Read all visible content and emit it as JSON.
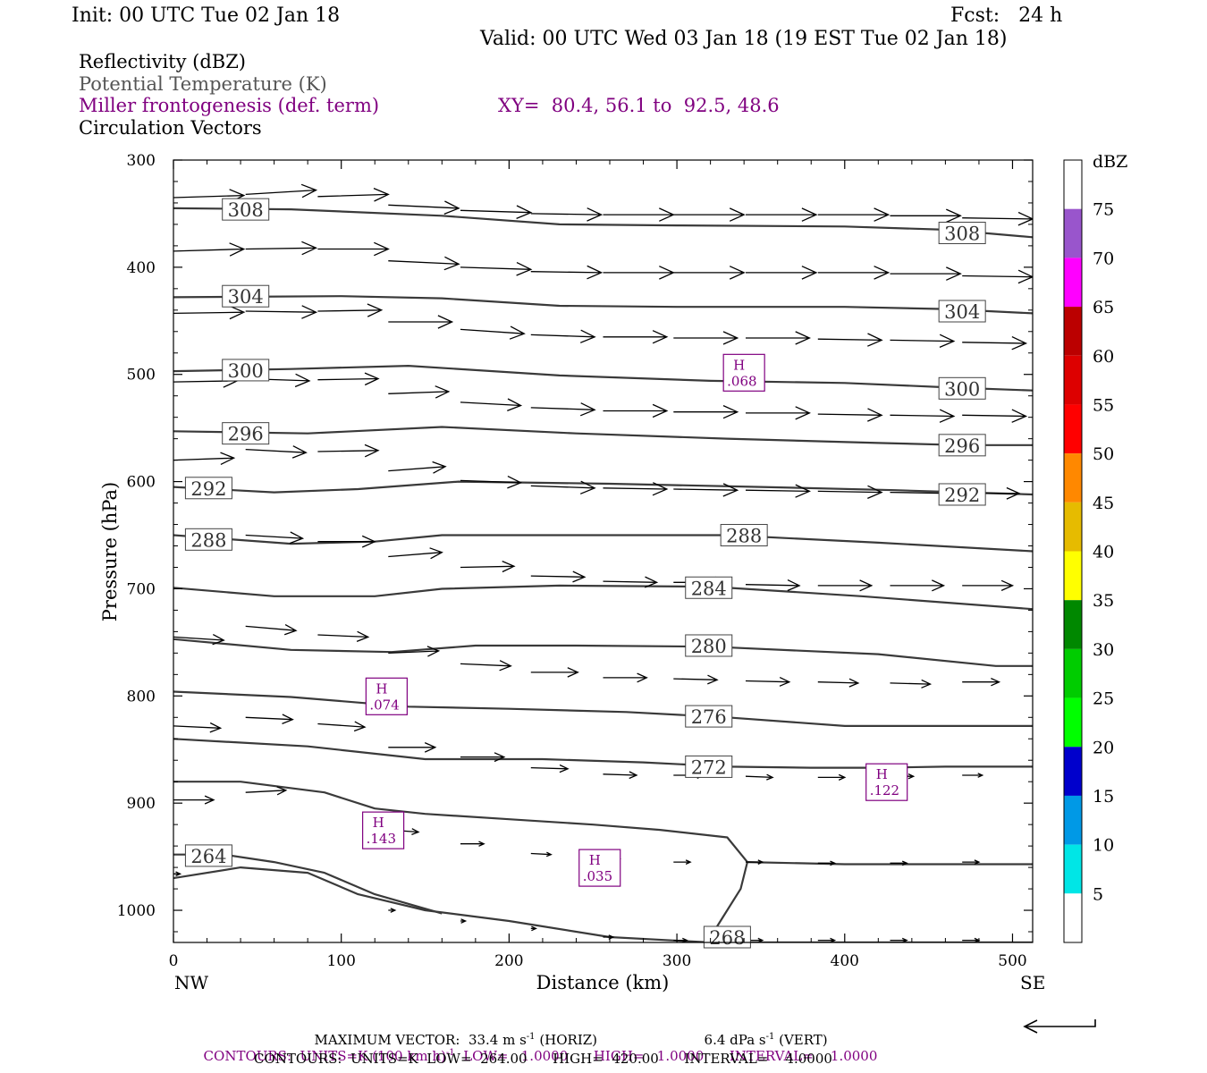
{
  "header": {
    "init": "Init: 00 UTC Tue 02 Jan 18",
    "fcst": "Fcst:   24 h",
    "valid": "Valid: 00 UTC Wed 03 Jan 18 (19 EST Tue 02 Jan 18)",
    "titles": {
      "reflectivity": "Reflectivity (dBZ)",
      "theta": "Potential Temperature (K)",
      "miller": "Miller frontogenesis (def. term)",
      "xy": "XY=  80.4, 56.1 to  92.5, 48.6",
      "vectors": "Circulation Vectors"
    }
  },
  "colors": {
    "theta": "#3a3a3a",
    "frontogenesis": "#800080",
    "vector": "#000000"
  },
  "chart_data": {
    "type": "line",
    "xlabel": "Distance (km)",
    "ylabel": "Pressure (hPa)",
    "xlim": [
      0,
      512
    ],
    "ylim": [
      300,
      1030
    ],
    "y_reversed": true,
    "x_ticks": [
      0,
      100,
      200,
      300,
      400,
      500
    ],
    "y_ticks": [
      300,
      400,
      500,
      600,
      700,
      800,
      900,
      1000
    ],
    "x_end_labels": {
      "left": "NW",
      "right": "SE"
    },
    "grid": false,
    "isentropes": [
      {
        "name": "308",
        "x": [
          0,
          70,
          160,
          230,
          300,
          400,
          460,
          512
        ],
        "y": [
          345,
          346,
          352,
          360,
          361,
          362,
          365,
          372
        ]
      },
      {
        "name": "304",
        "x": [
          0,
          100,
          160,
          230,
          300,
          400,
          460,
          512
        ],
        "y": [
          428,
          427,
          429,
          436,
          437,
          437,
          439,
          443
        ]
      },
      {
        "name": "300",
        "x": [
          0,
          70,
          140,
          230,
          320,
          400,
          460,
          512
        ],
        "y": [
          497,
          495,
          492,
          501,
          506,
          508,
          512,
          515
        ]
      },
      {
        "name": "296",
        "x": [
          0,
          80,
          160,
          240,
          330,
          420,
          470,
          512
        ],
        "y": [
          553,
          555,
          549,
          555,
          560,
          564,
          566,
          566
        ]
      },
      {
        "name": "292",
        "x": [
          0,
          60,
          110,
          170,
          260,
          350,
          430,
          512
        ],
        "y": [
          605,
          610,
          607,
          600,
          602,
          605,
          608,
          612
        ]
      },
      {
        "name": "288",
        "x": [
          0,
          70,
          120,
          160,
          220,
          330,
          420,
          512
        ],
        "y": [
          650,
          658,
          656,
          650,
          650,
          650,
          657,
          665
        ]
      },
      {
        "name": "284",
        "x": [
          0,
          60,
          120,
          160,
          230,
          320,
          410,
          512
        ],
        "y": [
          699,
          707,
          707,
          700,
          697,
          698,
          707,
          719
        ]
      },
      {
        "name": "280",
        "x": [
          0,
          70,
          130,
          180,
          240,
          320,
          420,
          490,
          512
        ],
        "y": [
          747,
          757,
          759,
          753,
          753,
          754,
          761,
          772,
          772
        ]
      },
      {
        "name": "276",
        "x": [
          0,
          70,
          140,
          200,
          270,
          330,
          400,
          512
        ],
        "y": [
          796,
          801,
          810,
          812,
          815,
          820,
          828,
          828
        ]
      },
      {
        "name": "272",
        "x": [
          0,
          80,
          150,
          220,
          280,
          330,
          380,
          420,
          460,
          512
        ],
        "y": [
          840,
          847,
          859,
          859,
          862,
          866,
          867,
          867,
          866,
          866
        ]
      },
      {
        "name": "268",
        "x": [
          0,
          40,
          90,
          120,
          150,
          200,
          250,
          290,
          330,
          342,
          338,
          328,
          320
        ],
        "y": [
          880,
          880,
          890,
          905,
          910,
          915,
          920,
          925,
          932,
          955,
          980,
          1005,
          1025
        ]
      },
      {
        "name": "268",
        "x": [
          342,
          400,
          512
        ],
        "y": [
          955,
          957,
          957
        ]
      },
      {
        "name": "264",
        "x": [
          0,
          30,
          60,
          90,
          120,
          160
        ],
        "y": [
          948,
          948,
          955,
          965,
          985,
          1003
        ]
      },
      {
        "name": "264",
        "x": [
          0,
          40,
          80,
          110,
          150,
          200,
          260,
          320,
          420,
          512
        ],
        "y": [
          970,
          960,
          965,
          985,
          1000,
          1010,
          1025,
          1030,
          1030,
          1030
        ]
      }
    ],
    "contour_labels": [
      {
        "text": "308",
        "x": 43,
        "y": 346
      },
      {
        "text": "308",
        "x": 470,
        "y": 368
      },
      {
        "text": "304",
        "x": 43,
        "y": 427
      },
      {
        "text": "304",
        "x": 470,
        "y": 441
      },
      {
        "text": "300",
        "x": 43,
        "y": 496
      },
      {
        "text": "300",
        "x": 470,
        "y": 513
      },
      {
        "text": "296",
        "x": 43,
        "y": 555
      },
      {
        "text": "296",
        "x": 470,
        "y": 566
      },
      {
        "text": "292",
        "x": 21,
        "y": 606
      },
      {
        "text": "292",
        "x": 470,
        "y": 612
      },
      {
        "text": "288",
        "x": 21,
        "y": 654
      },
      {
        "text": "288",
        "x": 340,
        "y": 650
      },
      {
        "text": "284",
        "x": 319,
        "y": 699
      },
      {
        "text": "280",
        "x": 319,
        "y": 753
      },
      {
        "text": "276",
        "x": 319,
        "y": 819
      },
      {
        "text": "272",
        "x": 319,
        "y": 866
      },
      {
        "text": "268",
        "x": 330,
        "y": 1025
      },
      {
        "text": "264",
        "x": 21,
        "y": 949
      }
    ],
    "frontogenesis_maxima": [
      {
        "label": "H",
        "value": ".068",
        "x": 340,
        "y": 498
      },
      {
        "label": "H",
        "value": ".074",
        "x": 127,
        "y": 800
      },
      {
        "label": "H",
        "value": ".122",
        "x": 425,
        "y": 880
      },
      {
        "label": "H",
        "value": ".143",
        "x": 125,
        "y": 925
      },
      {
        "label": "H",
        "value": ".035",
        "x": 254,
        "y": 960
      }
    ],
    "vectors": [
      {
        "x": 0,
        "y": 335,
        "u": 42,
        "w": -2
      },
      {
        "x": 43,
        "y": 332,
        "u": 42,
        "w": -4
      },
      {
        "x": 86,
        "y": 334,
        "u": 42,
        "w": -2
      },
      {
        "x": 128,
        "y": 342,
        "u": 42,
        "w": 3
      },
      {
        "x": 171,
        "y": 347,
        "u": 42,
        "w": 2
      },
      {
        "x": 213,
        "y": 350,
        "u": 42,
        "w": 1
      },
      {
        "x": 256,
        "y": 351,
        "u": 42,
        "w": 0
      },
      {
        "x": 298,
        "y": 351,
        "u": 42,
        "w": 0
      },
      {
        "x": 341,
        "y": 351,
        "u": 42,
        "w": 0
      },
      {
        "x": 384,
        "y": 351,
        "u": 42,
        "w": 0
      },
      {
        "x": 427,
        "y": 352,
        "u": 42,
        "w": 0
      },
      {
        "x": 470,
        "y": 354,
        "u": 42,
        "w": 1
      },
      {
        "x": 0,
        "y": 385,
        "u": 42,
        "w": -2
      },
      {
        "x": 43,
        "y": 383,
        "u": 42,
        "w": -1
      },
      {
        "x": 86,
        "y": 383,
        "u": 42,
        "w": 0
      },
      {
        "x": 128,
        "y": 394,
        "u": 42,
        "w": 3
      },
      {
        "x": 171,
        "y": 400,
        "u": 42,
        "w": 2
      },
      {
        "x": 213,
        "y": 404,
        "u": 42,
        "w": 1
      },
      {
        "x": 256,
        "y": 405,
        "u": 42,
        "w": 0
      },
      {
        "x": 298,
        "y": 405,
        "u": 42,
        "w": 0
      },
      {
        "x": 341,
        "y": 405,
        "u": 42,
        "w": 0
      },
      {
        "x": 384,
        "y": 405,
        "u": 42,
        "w": 0
      },
      {
        "x": 427,
        "y": 406,
        "u": 42,
        "w": 0
      },
      {
        "x": 470,
        "y": 408,
        "u": 42,
        "w": 1
      },
      {
        "x": 0,
        "y": 443,
        "u": 42,
        "w": -1
      },
      {
        "x": 43,
        "y": 441,
        "u": 42,
        "w": 1
      },
      {
        "x": 86,
        "y": 441,
        "u": 38,
        "w": -1
      },
      {
        "x": 128,
        "y": 451,
        "u": 38,
        "w": 0
      },
      {
        "x": 171,
        "y": 458,
        "u": 38,
        "w": 4
      },
      {
        "x": 213,
        "y": 463,
        "u": 38,
        "w": 2
      },
      {
        "x": 256,
        "y": 465,
        "u": 38,
        "w": 0
      },
      {
        "x": 298,
        "y": 466,
        "u": 38,
        "w": 0
      },
      {
        "x": 341,
        "y": 466,
        "u": 38,
        "w": 0
      },
      {
        "x": 384,
        "y": 467,
        "u": 38,
        "w": 1
      },
      {
        "x": 427,
        "y": 468,
        "u": 38,
        "w": 1
      },
      {
        "x": 470,
        "y": 470,
        "u": 38,
        "w": 1
      },
      {
        "x": 0,
        "y": 507,
        "u": 38,
        "w": -1
      },
      {
        "x": 43,
        "y": 504,
        "u": 38,
        "w": 2
      },
      {
        "x": 86,
        "y": 505,
        "u": 36,
        "w": -1
      },
      {
        "x": 128,
        "y": 518,
        "u": 36,
        "w": -2
      },
      {
        "x": 171,
        "y": 526,
        "u": 36,
        "w": 3
      },
      {
        "x": 213,
        "y": 531,
        "u": 38,
        "w": 2
      },
      {
        "x": 256,
        "y": 534,
        "u": 38,
        "w": 0
      },
      {
        "x": 298,
        "y": 535,
        "u": 38,
        "w": 0
      },
      {
        "x": 341,
        "y": 536,
        "u": 38,
        "w": 0
      },
      {
        "x": 384,
        "y": 537,
        "u": 38,
        "w": 1
      },
      {
        "x": 427,
        "y": 538,
        "u": 38,
        "w": 1
      },
      {
        "x": 470,
        "y": 538,
        "u": 38,
        "w": 1
      },
      {
        "x": 0,
        "y": 580,
        "u": 36,
        "w": -2
      },
      {
        "x": 43,
        "y": 570,
        "u": 36,
        "w": 3
      },
      {
        "x": 86,
        "y": 572,
        "u": 36,
        "w": -1
      },
      {
        "x": 128,
        "y": 590,
        "u": 34,
        "w": -4
      },
      {
        "x": 171,
        "y": 599,
        "u": 36,
        "w": 2
      },
      {
        "x": 213,
        "y": 604,
        "u": 38,
        "w": 2
      },
      {
        "x": 256,
        "y": 606,
        "u": 38,
        "w": 1
      },
      {
        "x": 298,
        "y": 607,
        "u": 38,
        "w": 1
      },
      {
        "x": 341,
        "y": 608,
        "u": 38,
        "w": 1
      },
      {
        "x": 384,
        "y": 609,
        "u": 38,
        "w": 1
      },
      {
        "x": 427,
        "y": 610,
        "u": 38,
        "w": 1
      },
      {
        "x": 470,
        "y": 611,
        "u": 34,
        "w": 0
      },
      {
        "x": 43,
        "y": 650,
        "u": 34,
        "w": 3
      },
      {
        "x": 86,
        "y": 656,
        "u": 34,
        "w": 0
      },
      {
        "x": 128,
        "y": 670,
        "u": 32,
        "w": -4
      },
      {
        "x": 171,
        "y": 680,
        "u": 32,
        "w": -1
      },
      {
        "x": 213,
        "y": 688,
        "u": 32,
        "w": 1
      },
      {
        "x": 256,
        "y": 693,
        "u": 32,
        "w": 1
      },
      {
        "x": 298,
        "y": 694,
        "u": 32,
        "w": 0
      },
      {
        "x": 341,
        "y": 696,
        "u": 32,
        "w": 1
      },
      {
        "x": 384,
        "y": 697,
        "u": 32,
        "w": 0
      },
      {
        "x": 427,
        "y": 697,
        "u": 32,
        "w": 0
      },
      {
        "x": 470,
        "y": 697,
        "u": 30,
        "w": 0
      },
      {
        "x": 0,
        "y": 745,
        "u": 30,
        "w": 3
      },
      {
        "x": 43,
        "y": 735,
        "u": 30,
        "w": 4
      },
      {
        "x": 86,
        "y": 743,
        "u": 30,
        "w": 2
      },
      {
        "x": 128,
        "y": 760,
        "u": 30,
        "w": -2
      },
      {
        "x": 171,
        "y": 770,
        "u": 30,
        "w": 2
      },
      {
        "x": 213,
        "y": 778,
        "u": 28,
        "w": 0
      },
      {
        "x": 256,
        "y": 783,
        "u": 26,
        "w": 0
      },
      {
        "x": 298,
        "y": 784,
        "u": 26,
        "w": 1
      },
      {
        "x": 341,
        "y": 786,
        "u": 26,
        "w": 1
      },
      {
        "x": 384,
        "y": 787,
        "u": 24,
        "w": 1
      },
      {
        "x": 427,
        "y": 788,
        "u": 24,
        "w": 1
      },
      {
        "x": 470,
        "y": 787,
        "u": 22,
        "w": 0
      },
      {
        "x": 0,
        "y": 828,
        "u": 28,
        "w": 2
      },
      {
        "x": 43,
        "y": 820,
        "u": 28,
        "w": 2
      },
      {
        "x": 86,
        "y": 826,
        "u": 28,
        "w": 3
      },
      {
        "x": 128,
        "y": 848,
        "u": 28,
        "w": 0
      },
      {
        "x": 171,
        "y": 857,
        "u": 26,
        "w": 0
      },
      {
        "x": 213,
        "y": 867,
        "u": 22,
        "w": 1
      },
      {
        "x": 256,
        "y": 873,
        "u": 20,
        "w": 1
      },
      {
        "x": 298,
        "y": 874,
        "u": 18,
        "w": 0
      },
      {
        "x": 341,
        "y": 875,
        "u": 16,
        "w": 1
      },
      {
        "x": 384,
        "y": 876,
        "u": 16,
        "w": 0
      },
      {
        "x": 427,
        "y": 875,
        "u": 14,
        "w": 0
      },
      {
        "x": 470,
        "y": 874,
        "u": 12,
        "w": 0
      },
      {
        "x": 0,
        "y": 897,
        "u": 24,
        "w": 0
      },
      {
        "x": 43,
        "y": 890,
        "u": 24,
        "w": -2
      },
      {
        "x": 128,
        "y": 925,
        "u": 18,
        "w": 2
      },
      {
        "x": 171,
        "y": 938,
        "u": 14,
        "w": 0
      },
      {
        "x": 213,
        "y": 947,
        "u": 12,
        "w": 1
      },
      {
        "x": 256,
        "y": 951,
        "u": 10,
        "w": 1
      },
      {
        "x": 298,
        "y": 955,
        "u": 10,
        "w": 0
      },
      {
        "x": 341,
        "y": 955,
        "u": 10,
        "w": 0
      },
      {
        "x": 384,
        "y": 956,
        "u": 10,
        "w": 0
      },
      {
        "x": 427,
        "y": 956,
        "u": 10,
        "w": 0
      },
      {
        "x": 470,
        "y": 955,
        "u": 10,
        "w": 0
      },
      {
        "x": 0,
        "y": 966,
        "u": 4,
        "w": 0
      },
      {
        "x": 128,
        "y": 1000,
        "u": 4,
        "w": 0
      },
      {
        "x": 171,
        "y": 1010,
        "u": 3,
        "w": 0
      },
      {
        "x": 213,
        "y": 1017,
        "u": 3,
        "w": 0
      },
      {
        "x": 256,
        "y": 1025,
        "u": 6,
        "w": 0
      },
      {
        "x": 298,
        "y": 1028,
        "u": 8,
        "w": 0
      },
      {
        "x": 341,
        "y": 1028,
        "u": 10,
        "w": 0
      },
      {
        "x": 384,
        "y": 1028,
        "u": 10,
        "w": 0
      },
      {
        "x": 427,
        "y": 1028,
        "u": 10,
        "w": 0
      },
      {
        "x": 470,
        "y": 1028,
        "u": 10,
        "w": 0
      }
    ],
    "colorbar": {
      "unit": "dBZ",
      "labels": [
        "5",
        "10",
        "15",
        "20",
        "25",
        "30",
        "35",
        "40",
        "45",
        "50",
        "55",
        "60",
        "65",
        "70",
        "75"
      ],
      "colors": [
        "#ffffff",
        "#00e6e6",
        "#0099e6",
        "#0000cc",
        "#00ff00",
        "#00cc00",
        "#008800",
        "#ffff00",
        "#e6bb00",
        "#ff8800",
        "#ff0000",
        "#dd0000",
        "#bb0000",
        "#ff00ff",
        "#9955cc",
        "#ffffff"
      ]
    }
  },
  "footer": {
    "max_vector_label": "MAXIMUM VECTOR:",
    "max_vector_horiz": "33.4 m s",
    "max_vector_horiz_exp": "-1",
    "max_vector_horiz_tail": " (HORIZ)",
    "max_vector_vert": "6.4 dPa s",
    "max_vector_vert_exp": "-1",
    "max_vector_vert_tail": " (VERT)",
    "contours1_a": "CONTOURS:  UNITS=K (100 km h)",
    "contours1_exp": "-1",
    "contours1_b": "  LOW=   1.0000      HIGH=   1.0000      INTERVAL=    1.0000",
    "contours2": "CONTOURS:  UNITS=K  LOW=  264.00      HIGH=  420.00      INTERVAL=    4.0000"
  }
}
